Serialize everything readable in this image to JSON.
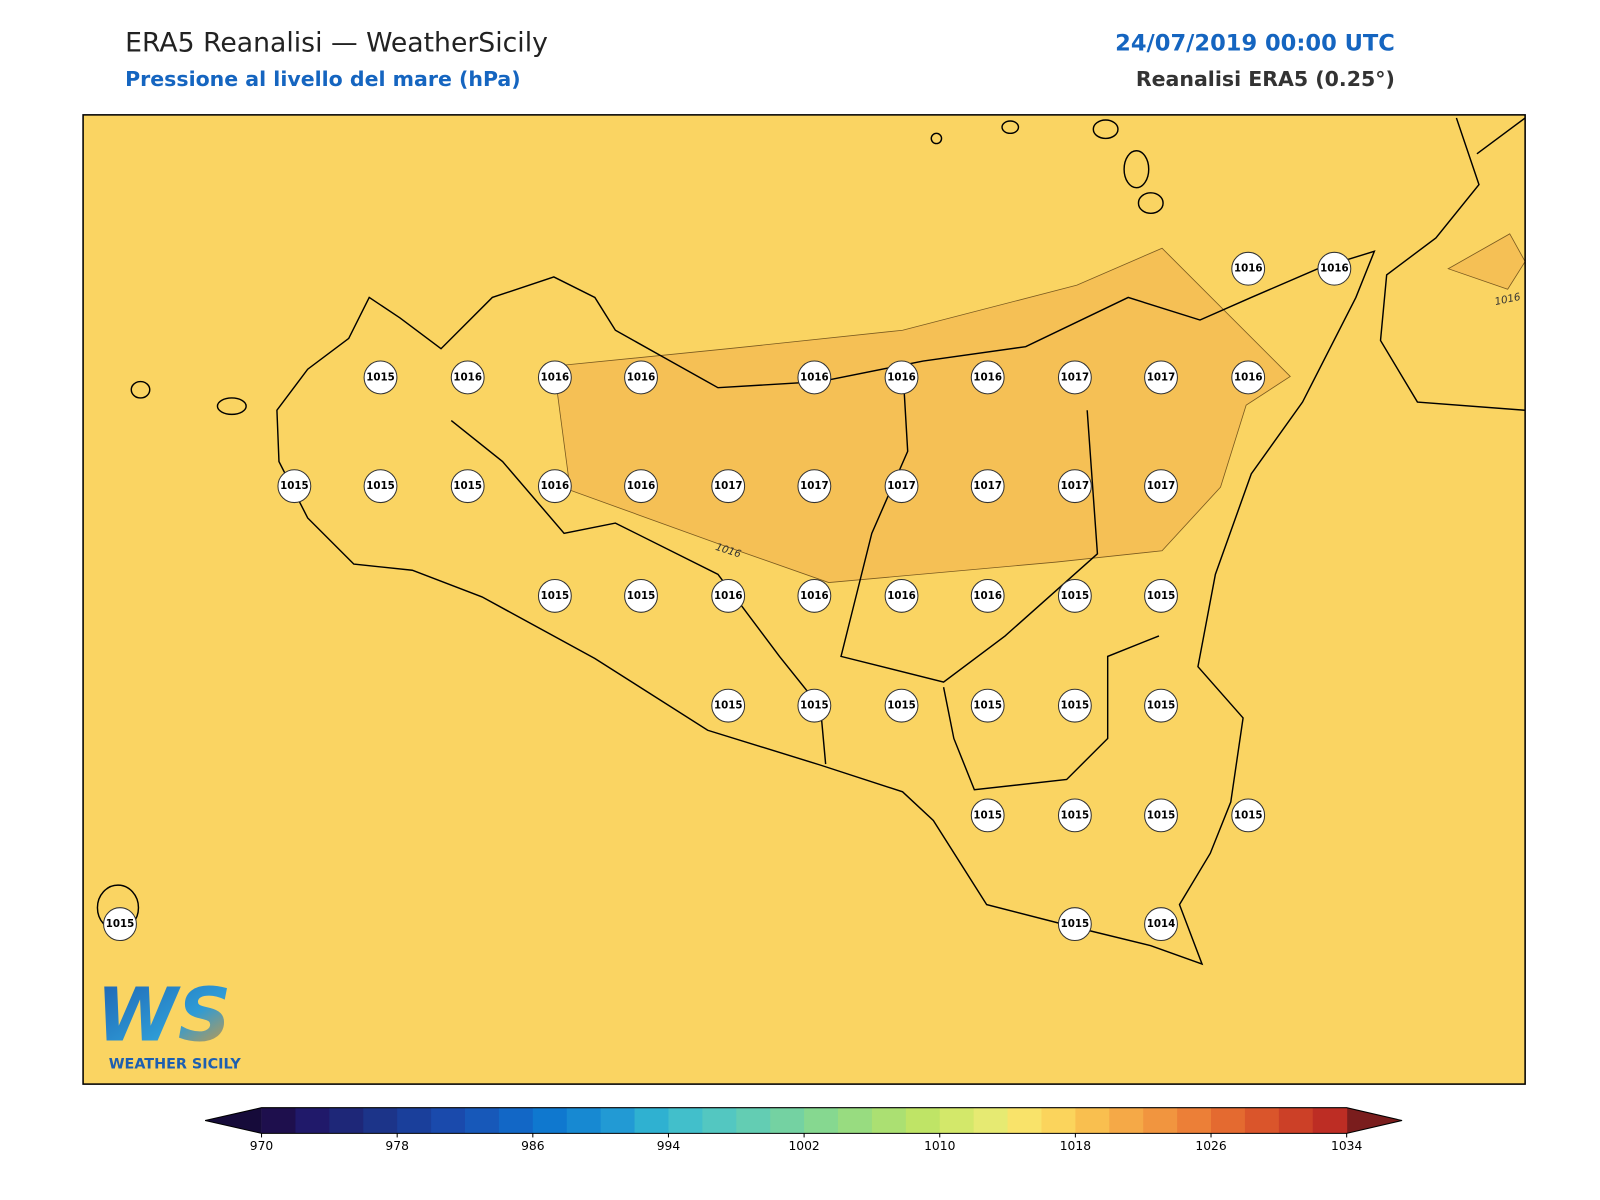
{
  "header": {
    "title": "ERA5 Reanalisi — WeatherSicily",
    "subtitle": "Pressione al livello del mare (hPa)",
    "datetime": "24/07/2019 00:00 UTC",
    "source": "Reanalisi ERA5 (0.25°)"
  },
  "map": {
    "background_color": "#fad462",
    "high_color": "#f5c055",
    "stations": [
      1016,
      1016,
      1015,
      1016,
      1016,
      1016,
      1016,
      1016,
      1016,
      1017,
      1017,
      1016,
      1015,
      1015,
      1015,
      1016,
      1016,
      1017,
      1017,
      1017,
      1017,
      1017,
      1017,
      1015,
      1015,
      1016,
      1016,
      1016,
      1016,
      1015,
      1015,
      1015,
      1015,
      1015,
      1015,
      1015,
      1015,
      1015,
      1015,
      1015,
      1015,
      1015,
      1015,
      1014
    ],
    "contour_labels": [
      "1016",
      "1016"
    ]
  },
  "logo": {
    "mark": "WS",
    "text": "WEATHER SICILY"
  },
  "colorbar": {
    "range": [
      970,
      1034
    ],
    "ticks": [
      970,
      978,
      986,
      994,
      1002,
      1010,
      1018,
      1026,
      1034
    ],
    "under_color": "#160b3a",
    "over_color": "#7a1d1d",
    "colors": [
      "#1e0f4d",
      "#20196a",
      "#1e2778",
      "#1c3489",
      "#1a3f9b",
      "#1a4aac",
      "#1758b9",
      "#1267c6",
      "#0f78cf",
      "#1789d2",
      "#229ad4",
      "#2fb1d1",
      "#42bfcb",
      "#53c7c1",
      "#63cdb3",
      "#74d2a2",
      "#86d890",
      "#98dc80",
      "#abe072",
      "#bfe466",
      "#d3e86a",
      "#e6ea72",
      "#f9e36a",
      "#fbd45c",
      "#f9bf4f",
      "#f5a947",
      "#f1953f",
      "#ec7f37",
      "#e46a30",
      "#da552b",
      "#cc4027",
      "#bd2d24"
    ]
  }
}
